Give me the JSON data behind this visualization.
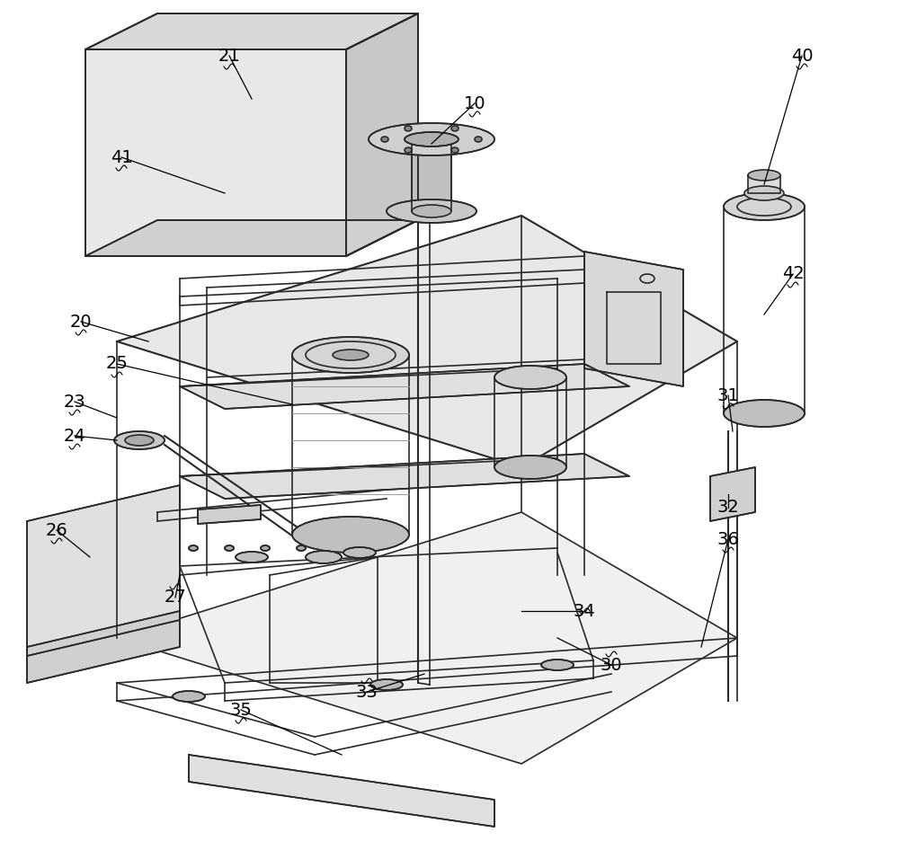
{
  "title": "",
  "background_color": "#ffffff",
  "line_color": "#2a2a2a",
  "label_info": {
    "10": {
      "lpos": [
        528,
        115
      ],
      "tpos": [
        480,
        160
      ]
    },
    "20": {
      "lpos": [
        90,
        358
      ],
      "tpos": [
        165,
        380
      ]
    },
    "21": {
      "lpos": [
        255,
        62
      ],
      "tpos": [
        280,
        110
      ]
    },
    "23": {
      "lpos": [
        83,
        447
      ],
      "tpos": [
        130,
        465
      ]
    },
    "24": {
      "lpos": [
        83,
        485
      ],
      "tpos": [
        130,
        490
      ]
    },
    "25": {
      "lpos": [
        130,
        405
      ],
      "tpos": [
        325,
        450
      ]
    },
    "26": {
      "lpos": [
        63,
        590
      ],
      "tpos": [
        100,
        620
      ]
    },
    "27": {
      "lpos": [
        195,
        665
      ],
      "tpos": [
        200,
        640
      ]
    },
    "30": {
      "lpos": [
        680,
        740
      ],
      "tpos": [
        620,
        710
      ]
    },
    "31": {
      "lpos": [
        810,
        440
      ],
      "tpos": [
        815,
        480
      ]
    },
    "32": {
      "lpos": [
        810,
        565
      ],
      "tpos": [
        810,
        550
      ]
    },
    "33": {
      "lpos": [
        408,
        770
      ],
      "tpos": [
        472,
        750
      ]
    },
    "34": {
      "lpos": [
        650,
        680
      ],
      "tpos": [
        580,
        680
      ]
    },
    "35": {
      "lpos": [
        268,
        790
      ],
      "tpos": [
        380,
        840
      ]
    },
    "36": {
      "lpos": [
        810,
        600
      ],
      "tpos": [
        780,
        720
      ]
    },
    "40": {
      "lpos": [
        892,
        62
      ],
      "tpos": [
        850,
        205
      ]
    },
    "41": {
      "lpos": [
        135,
        175
      ],
      "tpos": [
        250,
        215
      ]
    },
    "42": {
      "lpos": [
        882,
        305
      ],
      "tpos": [
        850,
        350
      ]
    }
  },
  "figsize": [
    10.0,
    9.56
  ],
  "dpi": 100
}
